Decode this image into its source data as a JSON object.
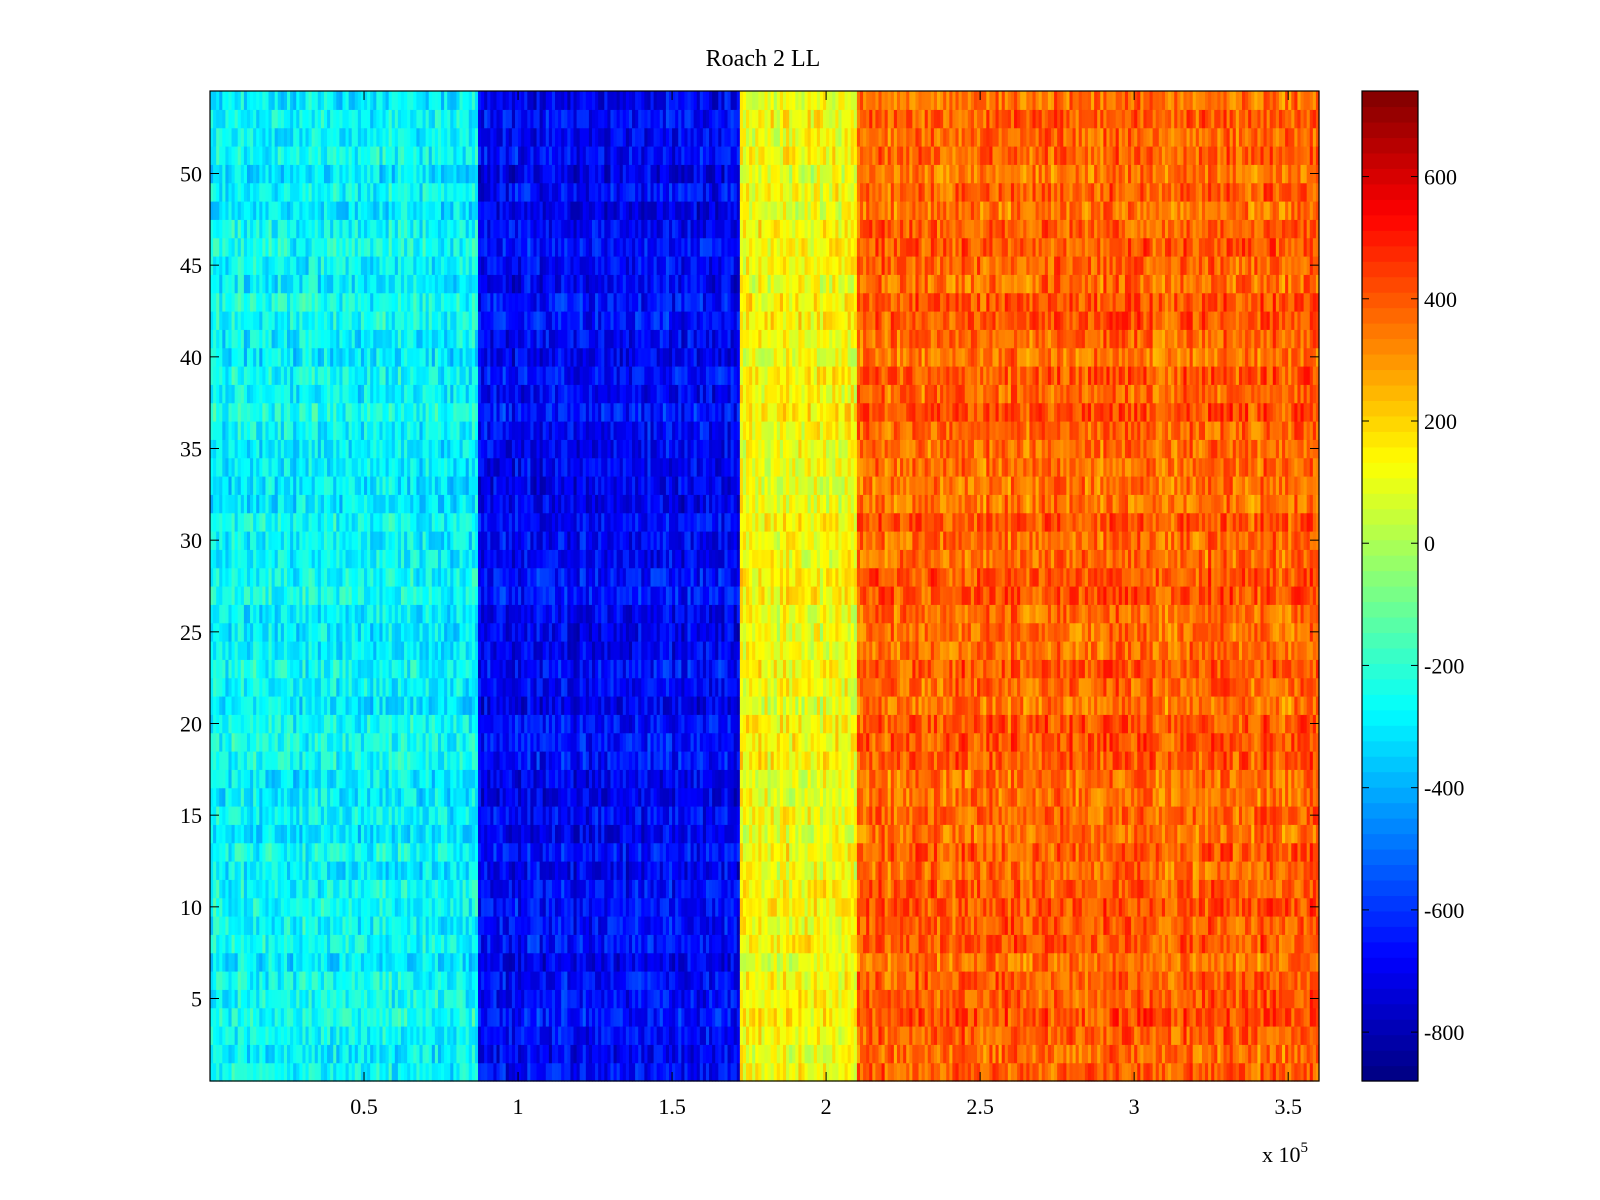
{
  "chart_data": {
    "type": "heatmap",
    "title": "Roach 2 LL",
    "xlabel": "",
    "ylabel": "",
    "x_multiplier_label": "x 10",
    "x_multiplier_exponent": "5",
    "xlim": [
      0,
      3.6
    ],
    "ylim": [
      0.5,
      54.5
    ],
    "x_ticks": [
      0.5,
      1,
      1.5,
      2,
      2.5,
      3,
      3.5
    ],
    "x_tick_labels": [
      "0.5",
      "1",
      "1.5",
      "2",
      "2.5",
      "3",
      "3.5"
    ],
    "y_ticks": [
      5,
      10,
      15,
      20,
      25,
      30,
      35,
      40,
      45,
      50
    ],
    "y_tick_labels": [
      "5",
      "10",
      "15",
      "20",
      "25",
      "30",
      "35",
      "40",
      "45",
      "50"
    ],
    "colorbar": {
      "colormap": "jet",
      "clim": [
        -880,
        740
      ],
      "ticks": [
        -800,
        -600,
        -400,
        -200,
        0,
        200,
        400,
        600
      ],
      "tick_labels": [
        "-800",
        "-600",
        "-400",
        "-200",
        "0",
        "200",
        "400",
        "600"
      ]
    },
    "rows": 54,
    "bands": [
      {
        "x_range": [
          0,
          0.87
        ],
        "mean_value": -280
      },
      {
        "x_range": [
          0.87,
          1.72
        ],
        "mean_value": -680
      },
      {
        "x_range": [
          1.72,
          2.1
        ],
        "mean_value": 120
      },
      {
        "x_range": [
          2.1,
          3.6
        ],
        "mean_value": 380
      }
    ]
  }
}
